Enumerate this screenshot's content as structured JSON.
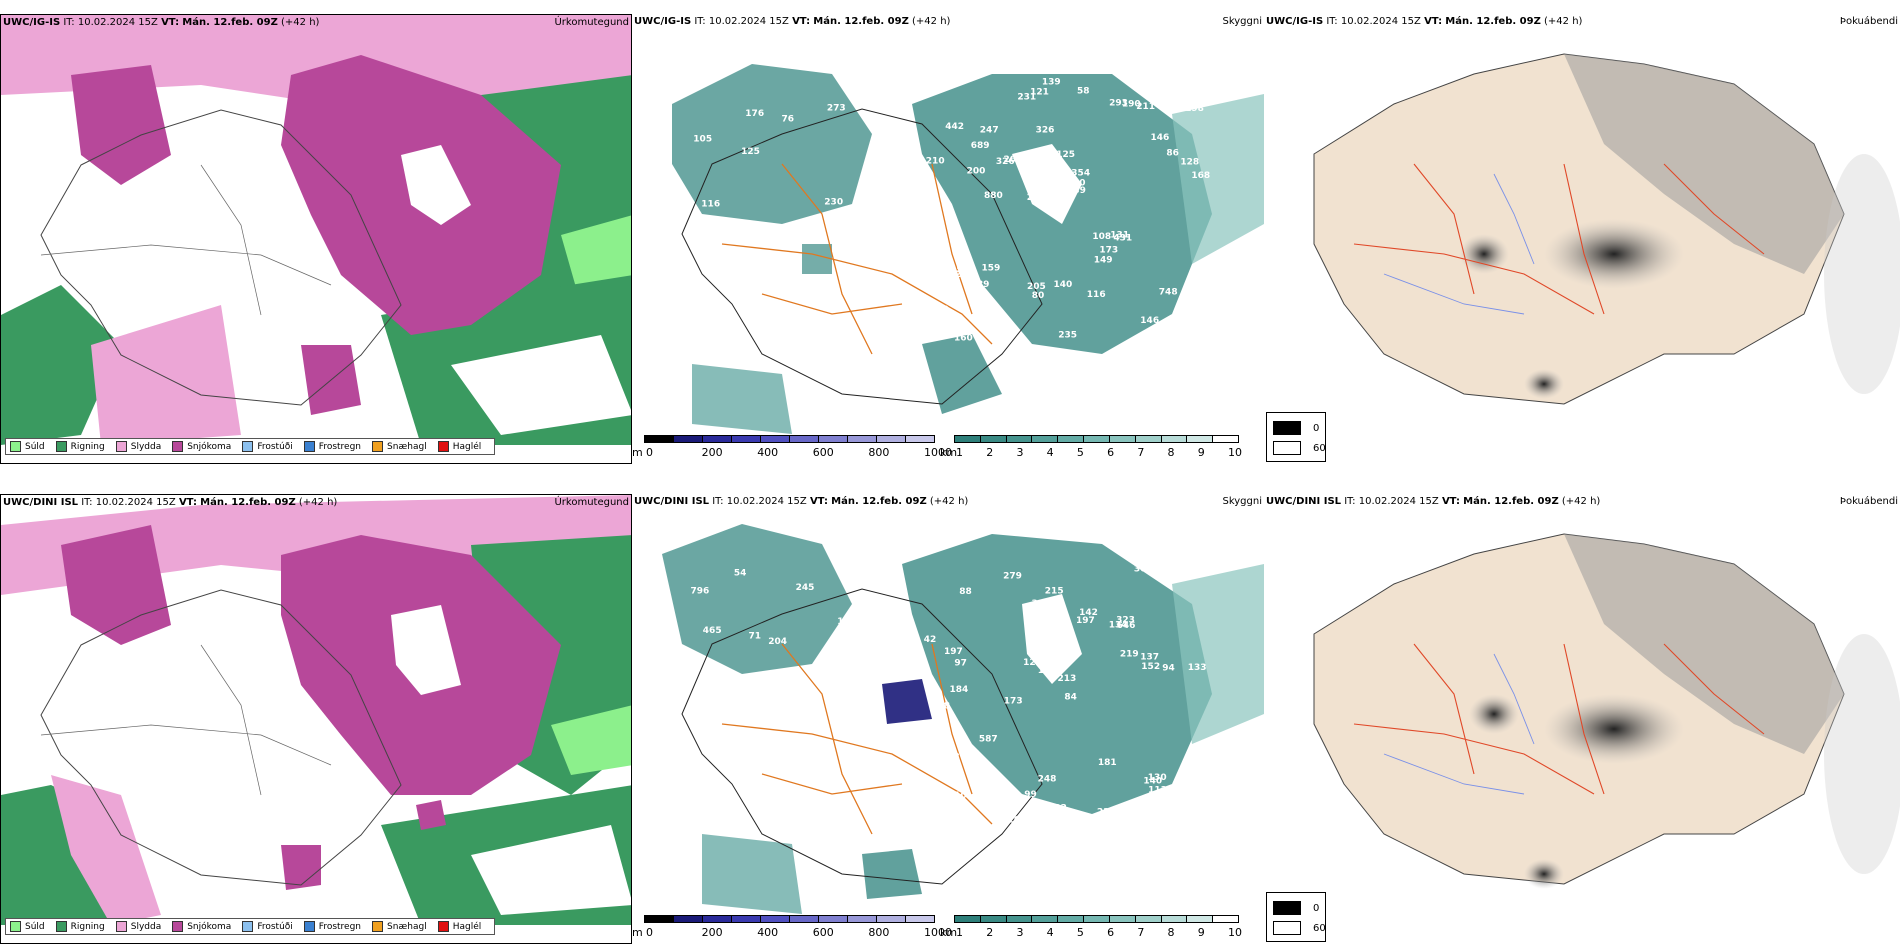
{
  "rows": [
    {
      "model": "UWC/IG-IS",
      "it_label": "IT:",
      "it_value": "10.02.2024 15Z",
      "vt_label": "VT:",
      "vt_value": "Mán. 12.feb. 09Z",
      "lead": "(+42 h)",
      "numbers": [
        "230",
        "105",
        "273",
        "125",
        "76",
        "116",
        "176",
        "125",
        "153",
        "209",
        "322",
        "363",
        "326",
        "354",
        "431",
        "442",
        "121",
        "168",
        "108",
        "86",
        "239",
        "205",
        "310",
        "247",
        "293",
        "159",
        "146",
        "748",
        "131",
        "235",
        "326",
        "200",
        "149",
        "175",
        "128",
        "540",
        "99",
        "80",
        "139",
        "212",
        "146",
        "198",
        "173",
        "116",
        "189",
        "160",
        "115",
        "140",
        "211",
        "139",
        "880",
        "210",
        "689",
        "190",
        "201",
        "58",
        "231"
      ]
    },
    {
      "model": "UWC/DINI ISL",
      "it_label": "IT:",
      "it_value": "10.02.2024 15Z",
      "vt_label": "VT:",
      "vt_value": "Mán. 12.feb. 09Z",
      "lead": "(+42 h)",
      "numbers": [
        "54",
        "245",
        "173",
        "71",
        "204",
        "465",
        "796",
        "134",
        "88",
        "197",
        "213",
        "266",
        "279",
        "173",
        "150",
        "354",
        "248",
        "300",
        "219",
        "587",
        "97",
        "184",
        "133",
        "94",
        "166",
        "197",
        "193",
        "152",
        "130",
        "168",
        "140",
        "142",
        "124",
        "122",
        "181",
        "209",
        "137",
        "99",
        "146",
        "215",
        "210",
        "206",
        "222",
        "88",
        "322",
        "646",
        "113",
        "323",
        "42",
        "84",
        "30"
      ]
    }
  ],
  "panel_titles": {
    "precip": "Úrkomutegund",
    "vis": "Skyggni",
    "fog": "Þokuábendi"
  },
  "precip_legend": [
    {
      "label": "Súld",
      "color": "#8cf08c"
    },
    {
      "label": "Rigning",
      "color": "#3a9a60"
    },
    {
      "label": "Slydda",
      "color": "#eca6d6"
    },
    {
      "label": "Snjókoma",
      "color": "#b7489a"
    },
    {
      "label": "Frostúði",
      "color": "#8cc0ee"
    },
    {
      "label": "Frostregn",
      "color": "#3a80d0"
    },
    {
      "label": "Snæhagl",
      "color": "#f0a020"
    },
    {
      "label": "Haglél",
      "color": "#e01010"
    }
  ],
  "height_bar": {
    "unit": "m",
    "ticks": [
      "0",
      "200",
      "400",
      "600",
      "800",
      "1000"
    ],
    "colors": [
      "#000000",
      "#1a1a78",
      "#2a2a9a",
      "#3a3ab0",
      "#5050c0",
      "#6868c8",
      "#8080d0",
      "#9898d8",
      "#b0b0e0",
      "#c8c8ea"
    ]
  },
  "vis_bar": {
    "unit": "km",
    "ticks": [
      "1",
      "2",
      "3",
      "4",
      "5",
      "6",
      "7",
      "8",
      "9",
      "10"
    ],
    "colors": [
      "#2e7f7a",
      "#3a8a84",
      "#46948e",
      "#54a09a",
      "#64aca6",
      "#76b8b2",
      "#8ac4be",
      "#a0d0ca",
      "#b8dcd8",
      "#d0e8e5",
      "#ffffff"
    ]
  },
  "fog_legend": [
    {
      "label": "0",
      "color": "#000000"
    },
    {
      "label": "60",
      "color": "#ffffff"
    }
  ]
}
